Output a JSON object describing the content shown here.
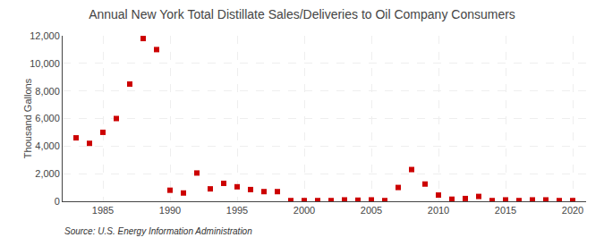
{
  "chart_data": {
    "type": "scatter",
    "title": "Annual New York Total Distillate Sales/Deliveries to Oil Company Consumers",
    "ylabel": "Thousand Gallons",
    "annotations": [
      "Source: U.S. Energy Information Administration"
    ],
    "x": [
      1983,
      1984,
      1985,
      1986,
      1987,
      1988,
      1989,
      1990,
      1991,
      1992,
      1993,
      1994,
      1995,
      1996,
      1997,
      1998,
      1999,
      2000,
      2001,
      2002,
      2003,
      2004,
      2005,
      2006,
      2007,
      2008,
      2009,
      2010,
      2011,
      2012,
      2013,
      2014,
      2015,
      2016,
      2017,
      2018,
      2019,
      2020
    ],
    "values": [
      4600,
      4200,
      5000,
      6000,
      8500,
      11800,
      11000,
      800,
      600,
      2050,
      900,
      1300,
      1050,
      850,
      700,
      700,
      50,
      50,
      50,
      50,
      100,
      80,
      100,
      50,
      1000,
      2300,
      1250,
      450,
      150,
      200,
      350,
      50,
      100,
      50,
      100,
      100,
      50,
      50
    ],
    "color": "#cc0000",
    "marker": "square",
    "xlim": [
      1982,
      2021
    ],
    "ylim": [
      0,
      12000
    ],
    "xticks": [
      1985,
      1990,
      1995,
      2000,
      2005,
      2010,
      2015,
      2020
    ],
    "yticks": [
      0,
      {
        "value": 2000,
        "label": "2,000"
      },
      {
        "value": 4000,
        "label": "4,000"
      },
      {
        "value": 6000,
        "label": "6,000"
      },
      {
        "value": 8000,
        "label": "8,000"
      },
      {
        "value": 10000,
        "label": "10,000"
      },
      {
        "value": 12000,
        "label": "12,000"
      }
    ],
    "grid": true
  }
}
